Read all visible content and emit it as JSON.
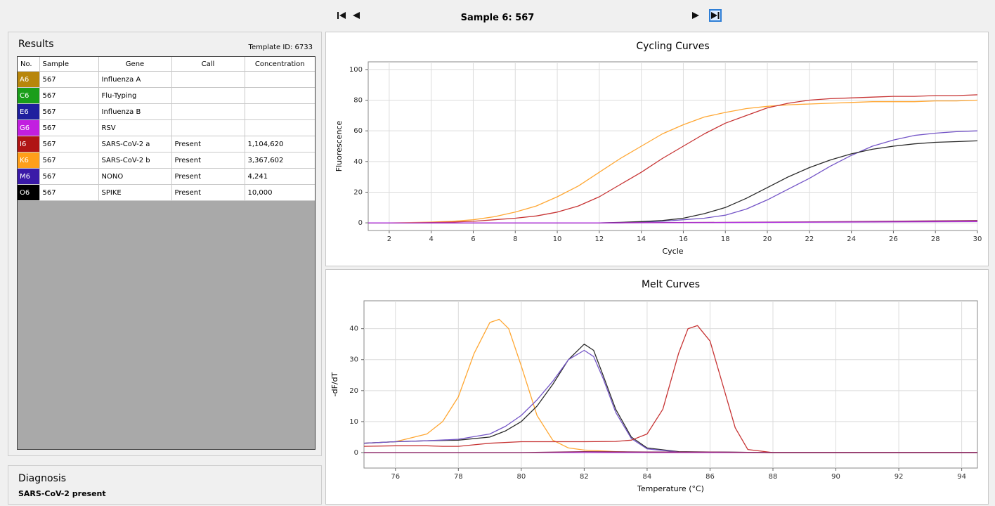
{
  "nav": {
    "title": "Sample 6: 567",
    "first_icon": "skip-first-icon",
    "prev_icon": "play-previous-icon",
    "next_icon": "play-next-icon",
    "last_icon": "skip-last-icon"
  },
  "results": {
    "title": "Results",
    "template_id": "Template ID: 6733",
    "columns": [
      "No.",
      "Sample",
      "Gene",
      "Call",
      "Concentration"
    ],
    "rows": [
      {
        "well": "A6",
        "color": "#b8860b",
        "sample": "567",
        "gene": "Influenza A",
        "call": "",
        "concentration": ""
      },
      {
        "well": "C6",
        "color": "#1a9e1a",
        "sample": "567",
        "gene": "Flu-Typing",
        "call": "",
        "concentration": ""
      },
      {
        "well": "E6",
        "color": "#1f1f9e",
        "sample": "567",
        "gene": "Influenza B",
        "call": "",
        "concentration": ""
      },
      {
        "well": "G6",
        "color": "#c21fe0",
        "sample": "567",
        "gene": "RSV",
        "call": "",
        "concentration": ""
      },
      {
        "well": "I6",
        "color": "#b01515",
        "sample": "567",
        "gene": "SARS-CoV-2 a",
        "call": "Present",
        "concentration": "1,104,620"
      },
      {
        "well": "K6",
        "color": "#ff9f1a",
        "sample": "567",
        "gene": "SARS-CoV-2 b",
        "call": "Present",
        "concentration": "3,367,602"
      },
      {
        "well": "M6",
        "color": "#3a1aa8",
        "sample": "567",
        "gene": "NONO",
        "call": "Present",
        "concentration": "4,241"
      },
      {
        "well": "O6",
        "color": "#000000",
        "sample": "567",
        "gene": "SPIKE",
        "call": "Present",
        "concentration": "10,000"
      }
    ]
  },
  "diagnosis": {
    "title": "Diagnosis",
    "text": "SARS-CoV-2 present"
  },
  "chart_data": [
    {
      "type": "line",
      "title": "Cycling Curves",
      "xlabel": "Cycle",
      "ylabel": "Fluorescence",
      "xlim": [
        1,
        30
      ],
      "ylim": [
        -5,
        105
      ],
      "xticks": [
        2,
        4,
        6,
        8,
        10,
        12,
        14,
        16,
        18,
        20,
        22,
        24,
        26,
        28,
        30
      ],
      "yticks": [
        0,
        20,
        40,
        60,
        80,
        100
      ],
      "grid": true,
      "series": [
        {
          "color": "#ffa733",
          "x": [
            1,
            2,
            3,
            4,
            5,
            6,
            7,
            8,
            9,
            10,
            11,
            12,
            13,
            14,
            15,
            16,
            17,
            18,
            19,
            20,
            21,
            22,
            23,
            24,
            25,
            26,
            27,
            28,
            29,
            30
          ],
          "y": [
            0,
            0,
            0.2,
            0.5,
            1,
            2,
            4,
            7,
            11,
            17,
            24,
            33,
            42,
            50,
            58,
            64,
            69,
            72,
            74.5,
            76,
            77,
            77.5,
            78,
            78.5,
            79,
            79,
            79,
            79.5,
            79.5,
            80
          ]
        },
        {
          "color": "#c73434",
          "x": [
            1,
            2,
            3,
            4,
            5,
            6,
            7,
            8,
            9,
            10,
            11,
            12,
            13,
            14,
            15,
            16,
            17,
            18,
            19,
            20,
            21,
            22,
            23,
            24,
            25,
            26,
            27,
            28,
            29,
            30
          ],
          "y": [
            0,
            0,
            0,
            0.2,
            0.5,
            1,
            2,
            3,
            4.5,
            7,
            11,
            17,
            25,
            33,
            42,
            50,
            58,
            65,
            70,
            75,
            78,
            80,
            81,
            81.5,
            82,
            82.5,
            82.5,
            83,
            83,
            83.5
          ]
        },
        {
          "color": "#7455c7",
          "x": [
            1,
            2,
            3,
            4,
            5,
            6,
            7,
            8,
            9,
            10,
            11,
            12,
            13,
            14,
            15,
            16,
            17,
            18,
            19,
            20,
            21,
            22,
            23,
            24,
            25,
            26,
            27,
            28,
            29,
            30
          ],
          "y": [
            0,
            0,
            0,
            0,
            0,
            0,
            0,
            0,
            0,
            0,
            0,
            0,
            0,
            0.5,
            1,
            2,
            3,
            5,
            9,
            15,
            22,
            29,
            37,
            44,
            50,
            54,
            57,
            58.5,
            59.5,
            60
          ]
        },
        {
          "color": "#2a2a2a",
          "x": [
            1,
            2,
            3,
            4,
            5,
            6,
            7,
            8,
            9,
            10,
            11,
            12,
            13,
            14,
            15,
            16,
            17,
            18,
            19,
            20,
            21,
            22,
            23,
            24,
            25,
            26,
            27,
            28,
            29,
            30
          ],
          "y": [
            0,
            0,
            0,
            0,
            0,
            0,
            0,
            0,
            0,
            0,
            0,
            0,
            0.3,
            0.8,
            1.5,
            3,
            6,
            10,
            16,
            23,
            30,
            36,
            41,
            45,
            48,
            50,
            51.5,
            52.5,
            53,
            53.5
          ]
        },
        {
          "color": "#8a2a5a",
          "x": [
            1,
            6,
            12,
            18,
            24,
            30
          ],
          "y": [
            0,
            0,
            0,
            0.3,
            0.8,
            1.5
          ]
        },
        {
          "color": "#b030e0",
          "x": [
            1,
            6,
            12,
            18,
            24,
            30
          ],
          "y": [
            0,
            0,
            0,
            0.2,
            0.5,
            0.8
          ]
        }
      ]
    },
    {
      "type": "line",
      "title": "Melt Curves",
      "xlabel": "Temperature (°C)",
      "ylabel": "-dF/dT",
      "xlim": [
        75,
        94.5
      ],
      "ylim": [
        -5,
        49
      ],
      "xticks": [
        76,
        78,
        80,
        82,
        84,
        86,
        88,
        90,
        92,
        94
      ],
      "yticks": [
        0,
        10,
        20,
        30,
        40
      ],
      "grid": true,
      "series": [
        {
          "color": "#ffa733",
          "x": [
            75,
            76,
            77,
            77.5,
            78,
            78.5,
            79,
            79.3,
            79.6,
            80,
            80.5,
            81,
            81.5,
            82,
            83,
            84,
            86,
            94.5
          ],
          "y": [
            3,
            3.5,
            6,
            10,
            18,
            32,
            42,
            43,
            40,
            28,
            12,
            4,
            1.5,
            0.8,
            0.3,
            0,
            0,
            0
          ]
        },
        {
          "color": "#2a2a2a",
          "x": [
            75,
            76,
            77,
            78,
            79,
            79.5,
            80,
            80.5,
            81,
            81.5,
            82,
            82.3,
            82.6,
            83,
            83.5,
            84,
            85,
            86,
            88,
            94.5
          ],
          "y": [
            3,
            3.5,
            3.8,
            4,
            5,
            7,
            10,
            15,
            22,
            30,
            35,
            33,
            25,
            14,
            5,
            1.5,
            0.3,
            0.2,
            0,
            0
          ]
        },
        {
          "color": "#7455c7",
          "x": [
            75,
            76,
            77,
            78,
            79,
            79.5,
            80,
            80.5,
            81,
            81.5,
            82,
            82.3,
            82.6,
            83,
            83.5,
            84,
            85,
            88,
            94.5
          ],
          "y": [
            3,
            3.5,
            3.8,
            4.3,
            6,
            8.5,
            12,
            17,
            23,
            30,
            33,
            31,
            24,
            13,
            4.5,
            1.2,
            0.2,
            0,
            0
          ]
        },
        {
          "color": "#c73434",
          "x": [
            75,
            76,
            77,
            77.5,
            78,
            78.5,
            79,
            80,
            81,
            82,
            83,
            83.5,
            84,
            84.5,
            85,
            85.3,
            85.6,
            86,
            86.4,
            86.8,
            87.2,
            88,
            94.5
          ],
          "y": [
            2,
            2.2,
            2.2,
            2,
            2,
            2.5,
            3,
            3.5,
            3.5,
            3.5,
            3.6,
            4,
            6,
            14,
            32,
            40,
            41,
            36,
            22,
            8,
            1,
            0,
            0
          ]
        },
        {
          "color": "#b030e0",
          "x": [
            75,
            80,
            82,
            84,
            86,
            88,
            94.5
          ],
          "y": [
            0,
            0,
            0,
            0,
            0,
            0,
            0
          ]
        },
        {
          "color": "#8a2a5a",
          "x": [
            75,
            80,
            82,
            84,
            86,
            88,
            94.5
          ],
          "y": [
            0,
            0,
            0.3,
            0.2,
            0.2,
            0,
            0
          ]
        }
      ]
    }
  ]
}
